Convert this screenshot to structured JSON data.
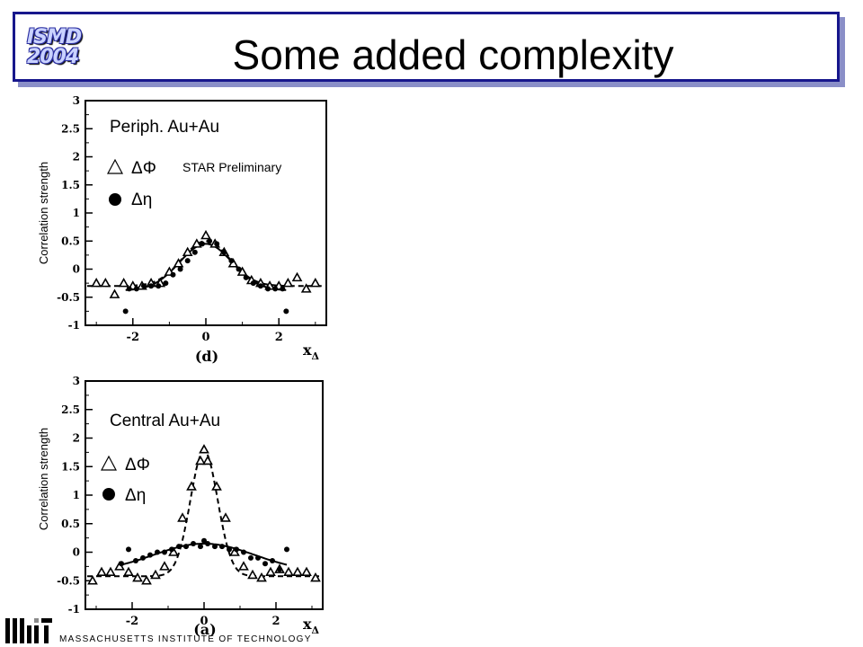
{
  "header": {
    "title": "Some added complexity",
    "logo_line1": "ISMD",
    "logo_line2": "2004"
  },
  "footer": {
    "institution": "MASSACHUSETTS INSTITUTE OF TECHNOLOGY"
  },
  "chart_data": [
    {
      "type": "scatter",
      "title": "Periph. Au+Au",
      "annotation": "STAR Preliminary",
      "panel_label": "(d)",
      "ylabel": "Correlation strength",
      "xlabel": "xΔ",
      "xlim": [
        -3.3,
        3.3
      ],
      "ylim": [
        -1,
        3
      ],
      "xticks": [
        "-2",
        "0",
        "2"
      ],
      "yticks": [
        "-1",
        "-0.5",
        "0",
        "0.5",
        "1",
        "1.5",
        "2",
        "2.5",
        "3"
      ],
      "series": [
        {
          "name": "ΔΦ",
          "marker": "triangle-open",
          "x": [
            -3.0,
            -2.75,
            -2.5,
            -2.25,
            -2.0,
            -1.75,
            -1.5,
            -1.25,
            -1.0,
            -0.75,
            -0.5,
            -0.25,
            0.0,
            0.25,
            0.5,
            0.75,
            1.0,
            1.25,
            1.5,
            1.75,
            2.0,
            2.25,
            2.5,
            2.75,
            3.0
          ],
          "y": [
            -0.25,
            -0.25,
            -0.45,
            -0.25,
            -0.3,
            -0.3,
            -0.25,
            -0.25,
            -0.05,
            0.1,
            0.3,
            0.45,
            0.6,
            0.45,
            0.3,
            0.1,
            -0.05,
            -0.2,
            -0.25,
            -0.3,
            -0.3,
            -0.25,
            -0.15,
            -0.35,
            -0.25
          ]
        },
        {
          "name": "Δη",
          "marker": "circle-filled",
          "x": [
            -2.2,
            -2.1,
            -1.9,
            -1.7,
            -1.5,
            -1.3,
            -1.1,
            -0.9,
            -0.7,
            -0.5,
            -0.3,
            -0.1,
            0.1,
            0.3,
            0.5,
            0.7,
            0.9,
            1.1,
            1.3,
            1.5,
            1.7,
            1.9,
            2.1,
            2.2
          ],
          "y": [
            -0.75,
            -0.35,
            -0.35,
            -0.3,
            -0.3,
            -0.3,
            -0.25,
            -0.1,
            0.0,
            0.15,
            0.3,
            0.45,
            0.5,
            0.45,
            0.3,
            0.15,
            0.0,
            -0.15,
            -0.25,
            -0.3,
            -0.35,
            -0.35,
            -0.35,
            -0.75
          ]
        }
      ],
      "fit_lines": [
        {
          "series": "ΔΦ",
          "style": "dashed",
          "baseline": -0.3,
          "amplitude": 0.8,
          "width": 0.65
        },
        {
          "series": "Δη",
          "style": "solid",
          "baseline": -0.38,
          "amplitude": 0.83,
          "width": 0.72,
          "xrange": [
            -2.2,
            2.2
          ]
        }
      ],
      "legend": "top-left",
      "grid": false
    },
    {
      "type": "scatter",
      "title": "Central Au+Au",
      "annotation": "",
      "panel_label": "(a)",
      "ylabel": "Correlation strength",
      "xlabel": "xΔ",
      "xlim": [
        -3.3,
        3.3
      ],
      "ylim": [
        -1,
        3
      ],
      "xticks": [
        "-2",
        "0",
        "2"
      ],
      "yticks": [
        "-1",
        "-0.5",
        "0",
        "0.5",
        "1",
        "1.5",
        "2",
        "2.5",
        "3"
      ],
      "series": [
        {
          "name": "ΔΦ",
          "marker": "triangle-open",
          "x": [
            -3.1,
            -2.85,
            -2.6,
            -2.35,
            -2.1,
            -1.85,
            -1.6,
            -1.35,
            -1.1,
            -0.85,
            -0.6,
            -0.35,
            -0.1,
            0.0,
            0.1,
            0.35,
            0.6,
            0.85,
            1.1,
            1.35,
            1.6,
            1.85,
            2.1,
            2.35,
            2.6,
            2.85,
            3.1
          ],
          "y": [
            -0.5,
            -0.35,
            -0.35,
            -0.25,
            -0.35,
            -0.45,
            -0.5,
            -0.4,
            -0.25,
            0.0,
            0.6,
            1.15,
            1.6,
            1.8,
            1.6,
            1.15,
            0.6,
            0.0,
            -0.25,
            -0.4,
            -0.45,
            -0.35,
            -0.3,
            -0.35,
            -0.35,
            -0.35,
            -0.45
          ]
        },
        {
          "name": "Δη",
          "marker": "circle-filled",
          "x": [
            -2.3,
            -2.1,
            -1.9,
            -1.7,
            -1.5,
            -1.3,
            -1.1,
            -0.9,
            -0.7,
            -0.5,
            -0.3,
            -0.1,
            0.0,
            0.1,
            0.3,
            0.5,
            0.7,
            0.9,
            1.1,
            1.3,
            1.5,
            1.7,
            1.9,
            2.1,
            2.3
          ],
          "y": [
            -0.2,
            0.05,
            -0.15,
            -0.1,
            -0.05,
            0.0,
            0.0,
            0.05,
            0.1,
            0.1,
            0.15,
            0.1,
            0.2,
            0.15,
            0.1,
            0.1,
            0.05,
            0.05,
            0.0,
            -0.1,
            -0.1,
            -0.2,
            -0.15,
            -0.3,
            0.05
          ]
        }
      ],
      "fit_lines": [
        {
          "series": "ΔΦ",
          "style": "dashed",
          "baseline": -0.42,
          "amplitude": 2.2,
          "width": 0.38
        },
        {
          "series": "Δη",
          "style": "solid",
          "baseline": -0.35,
          "amplitude": 0.5,
          "width": 1.4,
          "xrange": [
            -2.3,
            2.3
          ]
        }
      ],
      "legend": "left",
      "grid": false
    }
  ]
}
